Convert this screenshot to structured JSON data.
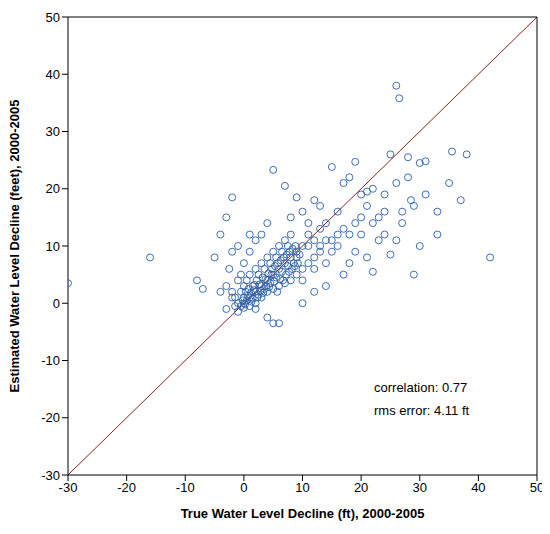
{
  "chart_data": {
    "type": "scatter",
    "x_label": "True Water Level Decline (ft), 2000-2005",
    "y_label": "Estimated Water Level Decline (feet), 2000-2005",
    "color": "#2a5ea8",
    "marker": "open_circle",
    "xlim": [
      -30,
      50
    ],
    "ylim": [
      -30,
      50
    ],
    "xticks": [
      -30,
      -20,
      -10,
      0,
      10,
      20,
      30,
      40,
      50
    ],
    "yticks": [
      -30,
      -20,
      -10,
      0,
      10,
      20,
      30,
      40,
      50
    ],
    "reference_line": {
      "x": [
        -30,
        50
      ],
      "y": [
        -30,
        50
      ],
      "color": "#8b2222"
    },
    "annotations": [
      "correlation: 0.77",
      "rms error: 4.11 ft"
    ],
    "x": [
      -30,
      -16,
      -8,
      -7,
      -5,
      -4,
      -3,
      -2,
      26,
      26.5,
      35.5,
      38,
      42,
      35,
      29,
      28,
      28.5,
      30,
      31,
      25,
      22,
      19,
      15,
      5,
      7,
      9,
      12,
      13,
      17,
      18,
      16,
      20,
      21,
      21,
      23,
      24,
      27,
      27,
      29,
      30,
      33,
      22,
      25,
      23,
      18,
      17,
      14,
      12,
      10,
      6,
      5,
      4,
      -1,
      2,
      0,
      1,
      2,
      3,
      4,
      8,
      10,
      11,
      14,
      15,
      16,
      19,
      20,
      19,
      21,
      14,
      13,
      12,
      10,
      9,
      0,
      0.5,
      1,
      1.5,
      2,
      2.5,
      3,
      3.5,
      4,
      4.5,
      5,
      5.5,
      6,
      6.5,
      7,
      7.5,
      8,
      8.5,
      9,
      9.5,
      10,
      11,
      12,
      -1,
      -1.5,
      -0.5,
      0,
      0.5,
      1,
      1.5,
      2,
      2.5,
      3,
      3.5,
      4,
      4.5,
      5,
      5.5,
      6,
      6.5,
      7,
      7.5,
      8,
      -2,
      -1,
      -0.5,
      0,
      0.3,
      0.8,
      1.2,
      1.8,
      2.2,
      2.8,
      3.2,
      3.8,
      4.2,
      4.8,
      5.2,
      5.8,
      6.2,
      6.8,
      7.2,
      7.8,
      8.2,
      8.8,
      9.2,
      1,
      2,
      3,
      4,
      5,
      6,
      7,
      8,
      9,
      10,
      11,
      12,
      13,
      14,
      15,
      16,
      17,
      18,
      11,
      13,
      -0.5,
      -0.2,
      0.2,
      0.7,
      1.3,
      1.7,
      2.3,
      2.7,
      3.3,
      3.7,
      4.3,
      4.7,
      5.3,
      5.7,
      6.3,
      6.7,
      7.3,
      7.7,
      8.3,
      8.7,
      -3,
      -2.5,
      -2,
      -1.5,
      -3,
      -4,
      -2,
      -1,
      0,
      1,
      20,
      22,
      24,
      26,
      28,
      33,
      31,
      37,
      24,
      26
    ],
    "values": [
      3.5,
      8,
      4,
      2.5,
      8,
      12,
      15,
      18.5,
      38,
      35.8,
      26.5,
      26,
      8,
      21,
      5,
      25.5,
      18,
      24.5,
      24.8,
      26,
      20,
      24.7,
      23.8,
      23.3,
      20.5,
      18.5,
      18,
      17,
      21,
      22,
      16,
      19,
      19.5,
      17,
      15,
      16,
      16,
      14,
      17,
      10,
      12,
      5.5,
      8.5,
      11,
      7,
      5,
      3,
      2,
      0,
      -3.5,
      -3.5,
      -2.5,
      -1.5,
      -1,
      -0.8,
      9,
      11,
      12,
      14,
      15,
      16,
      12,
      14,
      11,
      12,
      14,
      12,
      9,
      8,
      7,
      9,
      6,
      4,
      8,
      0,
      0.5,
      1,
      0.8,
      2,
      1.5,
      3,
      2.5,
      4,
      3.5,
      5,
      4.5,
      6,
      5.5,
      7,
      6.5,
      8,
      7,
      9,
      8.5,
      10,
      10,
      11,
      0,
      1,
      2,
      3,
      4,
      5,
      3,
      6,
      5,
      7,
      6,
      8,
      7,
      9,
      8,
      10,
      9,
      11,
      10,
      12,
      2,
      4,
      5,
      1,
      2,
      2.5,
      1.8,
      3.2,
      4,
      2.2,
      4.5,
      3,
      5.2,
      6,
      3.8,
      7,
      4.2,
      8,
      5,
      9,
      6,
      10,
      7,
      -0.5,
      0,
      1,
      2,
      2.5,
      3,
      3.5,
      4,
      5,
      6,
      7,
      8,
      10,
      11,
      9,
      10,
      13,
      12,
      14,
      13,
      -0.5,
      0.5,
      -0.2,
      1.3,
      0.3,
      2.3,
      1,
      3.3,
      1.8,
      4.2,
      2.8,
      5,
      6.5,
      2,
      7.5,
      4,
      8.5,
      5.5,
      9.5,
      6.5,
      3,
      6,
      1,
      -0.5,
      -1,
      2,
      9,
      10,
      7,
      12,
      15,
      14,
      19,
      21,
      22,
      16,
      19,
      18,
      12,
      11
    ]
  }
}
